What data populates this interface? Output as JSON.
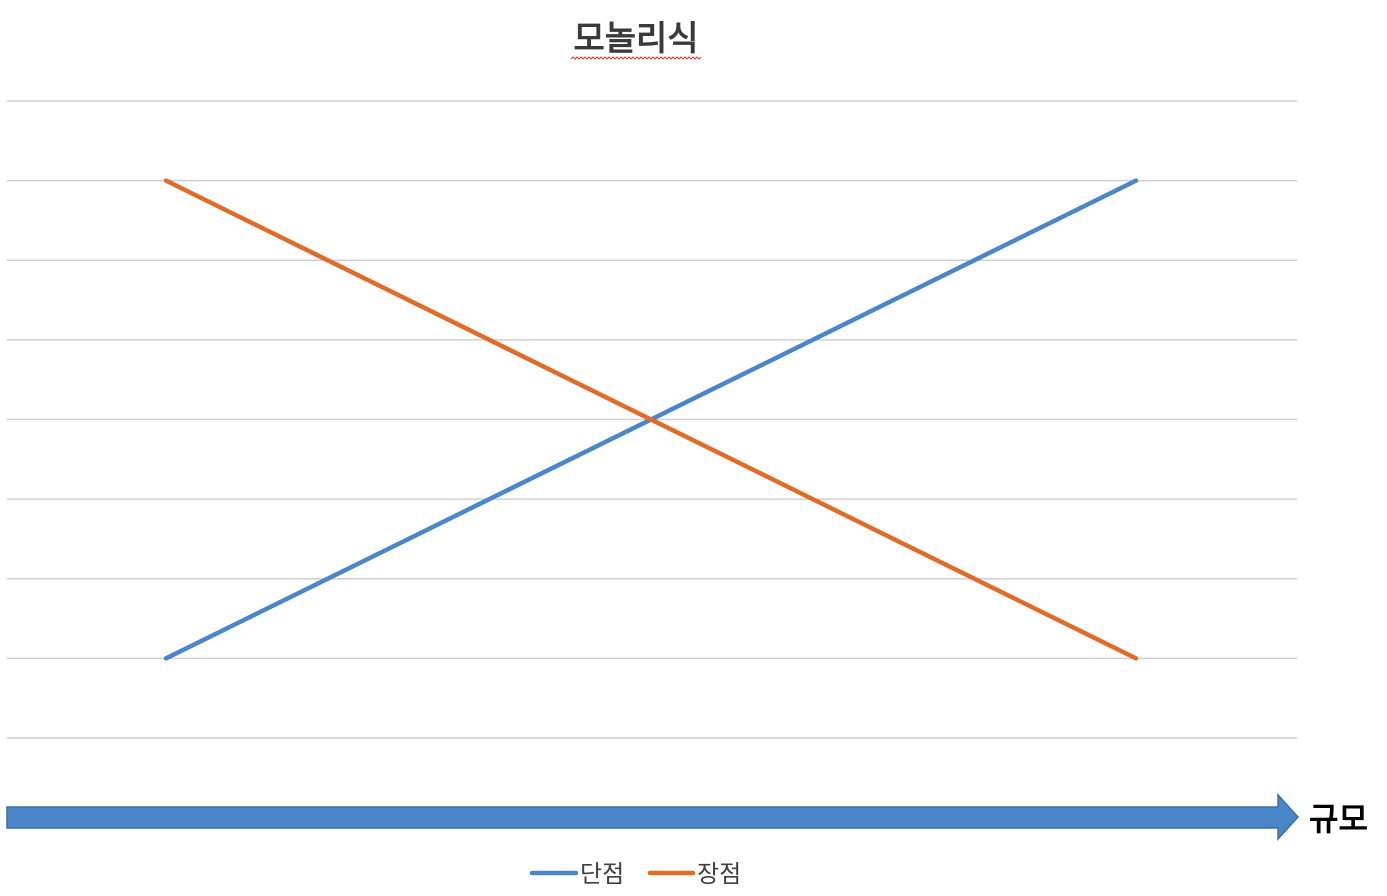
{
  "chart_data": {
    "type": "line",
    "title": "모놀리식",
    "x_axis_label": "규모",
    "x": [
      1,
      2
    ],
    "series": [
      {
        "name": "단점",
        "values": [
          1,
          7
        ],
        "color": "#4a86c8"
      },
      {
        "name": "장점",
        "values": [
          7,
          1
        ],
        "color": "#e06c2a"
      }
    ],
    "ylim": [
      0,
      8
    ],
    "gridlines": true,
    "legend_position": "bottom",
    "axis_arrow_color": "#4a86c8",
    "gridline_color": "#d0d0d0"
  }
}
